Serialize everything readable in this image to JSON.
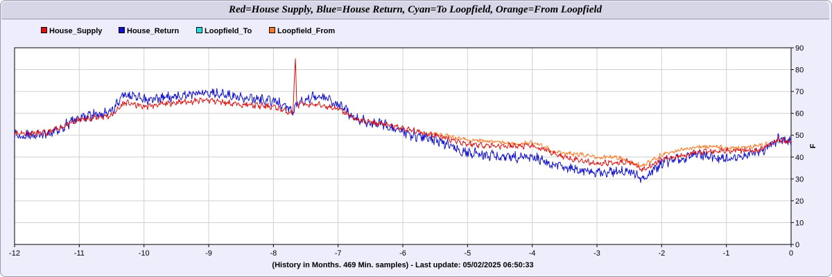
{
  "title": "Red=House Supply, Blue=House Return, Cyan=To Loopfield, Orange=From Loopfield",
  "footer": "(History in Months. 469 Min. samples) - Last update: 05/02/2025 06:50:33",
  "legend": [
    {
      "label": "House_Supply",
      "color": "#dd1111"
    },
    {
      "label": "House_Return",
      "color": "#1111cc"
    },
    {
      "label": "Loopfield_To",
      "color": "#22dddd"
    },
    {
      "label": "Loopfield_From",
      "color": "#ff7722"
    }
  ],
  "chart_data": {
    "type": "line",
    "xlabel": "",
    "ylabel": "F",
    "xlim": [
      -12,
      0
    ],
    "ylim": [
      0,
      90
    ],
    "xticks": [
      -12,
      -11,
      -10,
      -9,
      -8,
      -7,
      -6,
      -5,
      -4,
      -3,
      -2,
      -1,
      0
    ],
    "yticks": [
      0,
      10,
      20,
      30,
      40,
      50,
      60,
      70,
      80,
      90
    ],
    "grid": true,
    "legend_position": "top-left",
    "series": [
      {
        "name": "House_Supply",
        "color": "#dd1111",
        "x": [
          -12,
          -11.5,
          -11,
          -10.5,
          -10.3,
          -10,
          -9.5,
          -9,
          -8.5,
          -8,
          -7.7,
          -7.66,
          -7.64,
          -7.62,
          -7.6,
          -7.3,
          -7,
          -6.7,
          -6.3,
          -6,
          -5.5,
          -5,
          -4.5,
          -4,
          -3.5,
          -3,
          -2.5,
          -2.3,
          -2,
          -1.5,
          -1,
          -0.5,
          -0.2,
          0
        ],
        "y": [
          51,
          51,
          57,
          59,
          65,
          63,
          65,
          66,
          64,
          63,
          60,
          85,
          66,
          63,
          64,
          64,
          62,
          57,
          55,
          53,
          50,
          46,
          45,
          45,
          40,
          37,
          38,
          34,
          39,
          42,
          43,
          43,
          48,
          47
        ]
      },
      {
        "name": "House_Return",
        "color": "#1111cc",
        "x": [
          -12,
          -11.5,
          -11,
          -10.5,
          -10.3,
          -10,
          -9.5,
          -9,
          -8.5,
          -8,
          -7.7,
          -7.6,
          -7.3,
          -7,
          -6.7,
          -6.3,
          -6,
          -5.5,
          -5,
          -4.5,
          -4,
          -3.5,
          -3,
          -2.5,
          -2.3,
          -2,
          -1.5,
          -1,
          -0.5,
          -0.2,
          0
        ],
        "y": [
          50,
          50,
          58,
          61,
          69,
          66,
          68,
          70,
          67,
          66,
          61,
          66,
          68,
          64,
          57,
          55,
          51,
          48,
          42,
          40,
          40,
          35,
          33,
          34,
          30,
          37,
          41,
          39,
          42,
          48,
          47
        ]
      },
      {
        "name": "Loopfield_To",
        "color": "#22dddd",
        "x": [],
        "y": []
      },
      {
        "name": "Loopfield_From",
        "color": "#ff7722",
        "x": [
          -5.6,
          -5.2,
          -5,
          -4.6,
          -4.2,
          -4,
          -3.6,
          -3.2,
          -3,
          -2.7,
          -2.3,
          -2,
          -1.6,
          -1.2,
          -1,
          -0.6,
          -0.3
        ],
        "y": [
          51,
          49,
          48,
          47,
          46,
          47,
          42,
          41,
          40,
          40,
          36,
          41,
          44,
          45,
          44,
          45,
          46
        ]
      }
    ]
  }
}
